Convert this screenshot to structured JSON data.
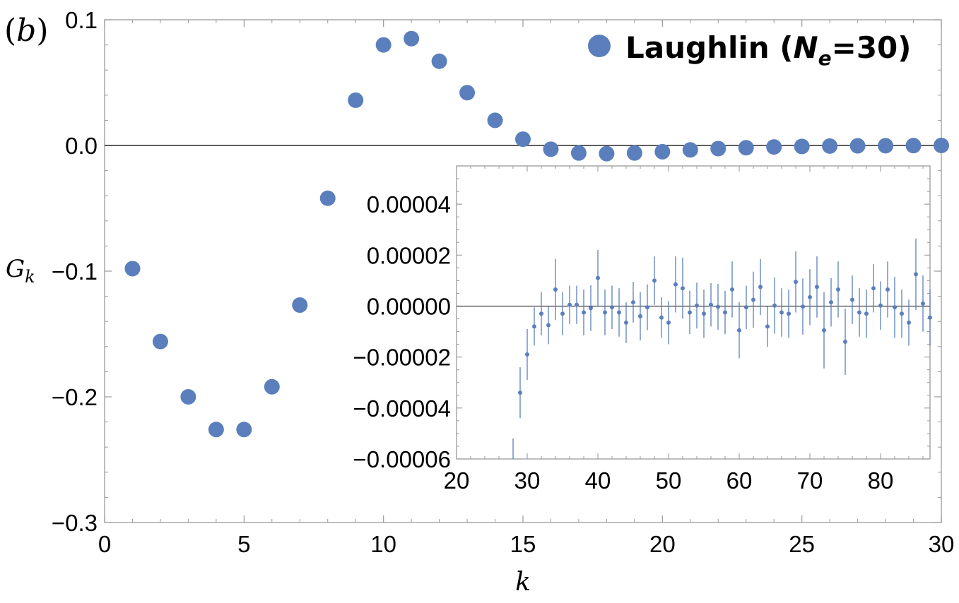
{
  "panel_label": {
    "open": "(",
    "letter": "b",
    "close": ")"
  },
  "legend": {
    "text_main": "Laughlin (",
    "text_var": "N",
    "text_sub": "e",
    "text_rest": "=30)",
    "marker_color": "#5b7fbd"
  },
  "colors": {
    "series": "#5b7fbd",
    "axis": "#9a9a9a",
    "zero_line": "#000000"
  },
  "chart_data": [
    {
      "type": "scatter",
      "title": "",
      "xlabel": "k",
      "ylabel_main": "G",
      "ylabel_sub": "k",
      "xlim": [
        0,
        30
      ],
      "ylim": [
        -0.3,
        0.1
      ],
      "xticks": [
        0,
        5,
        10,
        15,
        20,
        25,
        30
      ],
      "xtick_labels": [
        "0",
        "5",
        "10",
        "15",
        "20",
        "25",
        "30"
      ],
      "yticks": [
        -0.3,
        -0.2,
        -0.1,
        0.0,
        0.1
      ],
      "ytick_labels": [
        "−0.3",
        "−0.2",
        "−0.1",
        "0.0",
        "0.1"
      ],
      "grid": false,
      "legend_position": "top-right",
      "series": [
        {
          "name": "Laughlin (Ne=30)",
          "points": [
            [
              1,
              -0.098
            ],
            [
              2,
              -0.156
            ],
            [
              3,
              -0.2
            ],
            [
              4,
              -0.226
            ],
            [
              5,
              -0.226
            ],
            [
              6,
              -0.192
            ],
            [
              7,
              -0.127
            ],
            [
              8,
              -0.042
            ],
            [
              9,
              0.036
            ],
            [
              10,
              0.08
            ],
            [
              11,
              0.085
            ],
            [
              12,
              0.067
            ],
            [
              13,
              0.042
            ],
            [
              14,
              0.02
            ],
            [
              15,
              0.005
            ],
            [
              16,
              -0.003
            ],
            [
              17,
              -0.006
            ],
            [
              18,
              -0.0065
            ],
            [
              19,
              -0.006
            ],
            [
              20,
              -0.005
            ],
            [
              21,
              -0.0035
            ],
            [
              22,
              -0.0025
            ],
            [
              23,
              -0.0018
            ],
            [
              24,
              -0.0012
            ],
            [
              25,
              -0.0008
            ],
            [
              26,
              -0.0005
            ],
            [
              27,
              -0.0003
            ],
            [
              28,
              -0.0002
            ],
            [
              29,
              -0.0001
            ],
            [
              30,
              0.0
            ]
          ]
        }
      ]
    },
    {
      "type": "scatter",
      "title": "",
      "role": "inset",
      "xlim": [
        20,
        87
      ],
      "ylim": [
        -6e-05,
        5.5e-05
      ],
      "xticks": [
        20,
        30,
        40,
        50,
        60,
        70,
        80
      ],
      "xtick_labels": [
        "20",
        "30",
        "40",
        "50",
        "60",
        "70",
        "80"
      ],
      "yticks": [
        -6e-05,
        -4e-05,
        -2e-05,
        0.0,
        2e-05,
        4e-05
      ],
      "ytick_labels": [
        "−0.00006",
        "−0.00004",
        "−0.00002",
        "0.00000",
        "0.00002",
        "0.00004"
      ],
      "grid": false,
      "series": [
        {
          "points": [
            [
              28,
              -6.5e-05
            ],
            [
              29,
              -3.4e-05
            ],
            [
              30,
              -1.9e-05
            ],
            [
              31,
              -8e-06
            ],
            [
              32,
              -3e-06
            ],
            [
              33,
              -7.5e-06
            ],
            [
              34,
              6.5e-06
            ],
            [
              35,
              -3e-06
            ],
            [
              36,
              5e-07
            ],
            [
              37,
              5e-07
            ],
            [
              38,
              -2.5e-06
            ],
            [
              39,
              -8e-07
            ],
            [
              40,
              1.1e-05
            ],
            [
              41,
              -2.5e-06
            ],
            [
              42,
              -5e-07
            ],
            [
              43,
              -2.5e-06
            ],
            [
              44,
              -6.5e-06
            ],
            [
              45,
              1.5e-06
            ],
            [
              46,
              -4e-06
            ],
            [
              47,
              -5e-07
            ],
            [
              48,
              1e-05
            ],
            [
              49,
              -4.5e-06
            ],
            [
              50,
              -6.5e-06
            ],
            [
              51,
              8.5e-06
            ],
            [
              52,
              7e-06
            ],
            [
              53,
              -2.5e-06
            ],
            [
              54,
              2e-07
            ],
            [
              55,
              -3e-06
            ],
            [
              56,
              5e-07
            ],
            [
              57,
              -3e-07
            ],
            [
              58,
              -2.5e-06
            ],
            [
              59,
              6.5e-06
            ],
            [
              60,
              -9.5e-06
            ],
            [
              61,
              -5e-07
            ],
            [
              62,
              2.5e-06
            ],
            [
              63,
              7.5e-06
            ],
            [
              64,
              -8e-06
            ],
            [
              65,
              2e-07
            ],
            [
              66,
              -2.5e-06
            ],
            [
              67,
              -3e-06
            ],
            [
              68,
              9.5e-06
            ],
            [
              69,
              -2e-07
            ],
            [
              70,
              3.5e-06
            ],
            [
              71,
              7.5e-06
            ],
            [
              72,
              -9.5e-06
            ],
            [
              73,
              1.5e-06
            ],
            [
              74,
              6.5e-06
            ],
            [
              75,
              -1.4e-05
            ],
            [
              76,
              2.5e-06
            ],
            [
              77,
              -2.5e-06
            ],
            [
              78,
              -3e-06
            ],
            [
              79,
              7e-06
            ],
            [
              80,
              2e-07
            ],
            [
              81,
              6.5e-06
            ],
            [
              82,
              -5e-07
            ],
            [
              83,
              -3e-06
            ],
            [
              84,
              -6.5e-06
            ],
            [
              85,
              1.25e-05
            ],
            [
              86,
              1e-06
            ],
            [
              87,
              -4.5e-06
            ]
          ],
          "errors": [
            1.3e-05,
            1e-05,
            1e-05,
            7.5e-06,
            8.5e-06,
            7.5e-06,
            1.2e-05,
            8.5e-06,
            7.5e-06,
            7.5e-06,
            9e-06,
            9e-06,
            1.1e-05,
            9e-06,
            8.5e-06,
            9.5e-06,
            8e-06,
            8e-06,
            9.5e-06,
            9e-06,
            9.5e-06,
            8e-06,
            8.5e-06,
            1.1e-05,
            1.2e-05,
            8.5e-06,
            9e-06,
            9.5e-06,
            8.5e-06,
            9e-06,
            8.5e-06,
            1.1e-05,
            1.1e-05,
            8.5e-06,
            1.1e-05,
            1.1e-05,
            8e-06,
            1.1e-05,
            9.5e-06,
            9.5e-06,
            1.2e-05,
            1.1e-05,
            1.1e-05,
            1.2e-05,
            1.5e-05,
            9.5e-06,
            1.1e-05,
            1.3e-05,
            9.5e-06,
            9.5e-06,
            9.5e-06,
            9.5e-06,
            9.5e-06,
            1.1e-05,
            1.2e-05,
            9.5e-06,
            9e-06,
            1.4e-05,
            1.1e-05,
            1.1e-05
          ]
        }
      ]
    }
  ]
}
